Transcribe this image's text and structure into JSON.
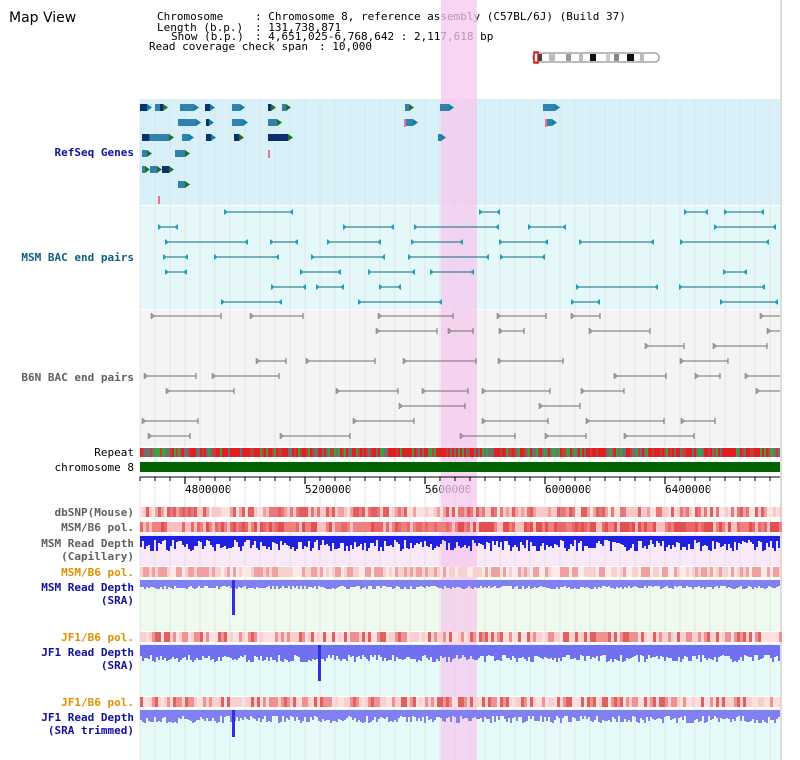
{
  "title": "Map View",
  "header": {
    "chromosome_label": "Chromosome",
    "chromosome_value": ": Chromosome 8, reference assembly (C57BL/6J) (Build 37)",
    "length_label": "Length (b.p.)",
    "length_value": ": 131,738,871",
    "show_label": "Show (b.p.)",
    "show_value": ": 4,651,025-6,768,642 : 2,117,618 bp",
    "span_label": "Read coverage check span",
    "span_value": ": 10,000"
  },
  "tracks": {
    "refseq": "RefSeq Genes",
    "msm_bac": "MSM BAC end pairs",
    "b6n_bac": "B6N BAC end pairs",
    "repeat": "Repeat",
    "chromosome": "chromosome 8",
    "dbsnp": "dbSNP(Mouse)",
    "msm_pol": "MSM/B6 pol.",
    "msm_depth_cap_1": "MSM Read Depth",
    "msm_depth_cap_2": "(Capillary)",
    "msm_pol_2": "MSM/B6 pol.",
    "msm_depth_sra_1": "MSM Read Depth",
    "msm_depth_sra_2": "(SRA)",
    "jf1_pol": "JF1/B6 pol.",
    "jf1_depth_sra_1": "JF1 Read Depth",
    "jf1_depth_sra_2": "(SRA)",
    "jf1_pol_2": "JF1/B6 pol.",
    "jf1_depth_trim_1": "JF1 Read Depth",
    "jf1_depth_trim_2": "(SRA trimmed)"
  },
  "axis": {
    "ticks": [
      "4800000",
      "5200000",
      "5600000",
      "6000000",
      "6400000"
    ]
  },
  "colors": {
    "refseq_bg": "#d8f0f8",
    "msm_bg": "#e4f8fa",
    "b6n_bg": "#f4f4f4",
    "highlight": "#f5c8ee",
    "refseq_label": "#1010a0",
    "msm_label": "#106080",
    "b6n_label": "#606060",
    "pol_label": "#e09000",
    "depth_label": "#1010a0",
    "chromosome_bar": "#006400",
    "depth_bar": "#3030e0"
  }
}
